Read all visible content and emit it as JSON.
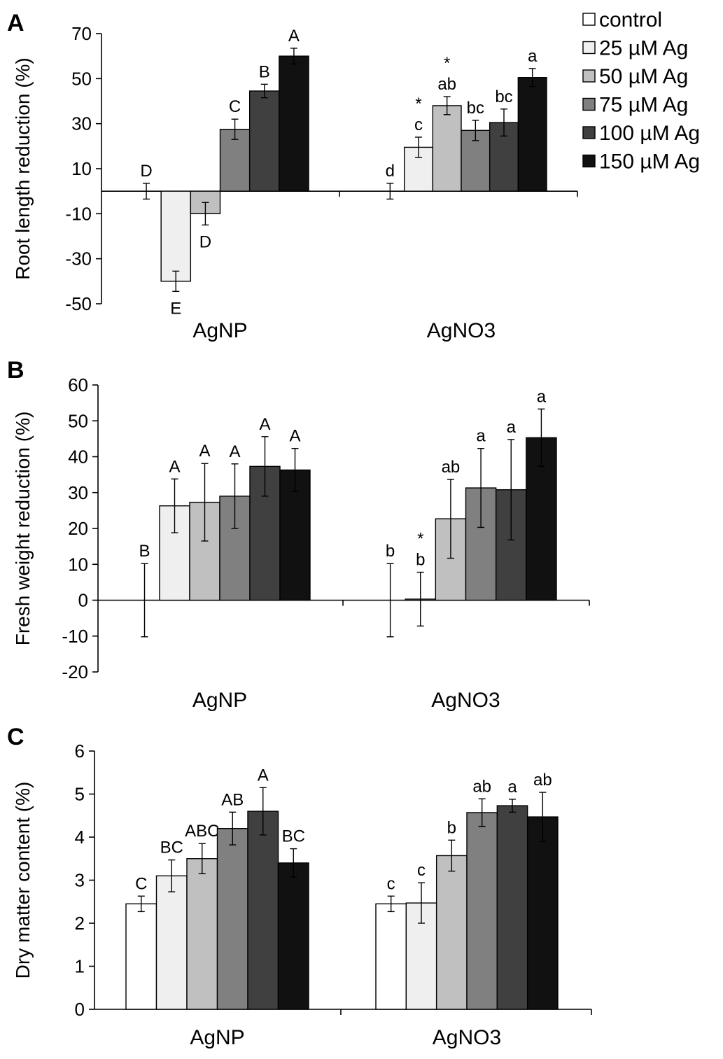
{
  "colors": {
    "control": "#ffffff",
    "25 µM Ag": "#efefef",
    "50 µM Ag": "#c0c0c0",
    "75 µM Ag": "#808080",
    "100 µM Ag": "#404040",
    "150 µM Ag": "#111111"
  },
  "legend": {
    "placement": "top-right",
    "items": [
      "control",
      "25 µM Ag",
      "50 µM Ag",
      "75 µM Ag",
      "100 µM Ag",
      "150 µM Ag"
    ]
  },
  "chart_data": [
    {
      "panel": "A",
      "type": "bar",
      "ylabel": "Root length reduction (%)",
      "categories": [
        "AgNP",
        "AgNO3"
      ],
      "ylim": [
        -50,
        70
      ],
      "yticks": [
        -50,
        -30,
        -10,
        10,
        30,
        50,
        70
      ],
      "grid": false,
      "series": [
        {
          "name": "control",
          "values": [
            0,
            0
          ],
          "errors": [
            3.5,
            3.5
          ],
          "letters": [
            "D",
            "d"
          ],
          "stars": [
            "",
            ""
          ]
        },
        {
          "name": "25 µM Ag",
          "values": [
            -40,
            19.5
          ],
          "errors": [
            4.5,
            4.5
          ],
          "letters": [
            "E",
            "c"
          ],
          "stars": [
            "",
            "*"
          ]
        },
        {
          "name": "50 µM Ag",
          "values": [
            -10,
            38
          ],
          "errors": [
            5,
            4
          ],
          "letters": [
            "D",
            "ab"
          ],
          "stars": [
            "",
            "*"
          ]
        },
        {
          "name": "75 µM Ag",
          "values": [
            27.5,
            27
          ],
          "errors": [
            4.5,
            4.5
          ],
          "letters": [
            "C",
            "bc"
          ],
          "stars": [
            "",
            ""
          ]
        },
        {
          "name": "100 µM Ag",
          "values": [
            44.5,
            30.5
          ],
          "errors": [
            3,
            6
          ],
          "letters": [
            "B",
            "bc"
          ],
          "stars": [
            "",
            ""
          ]
        },
        {
          "name": "150 µM Ag",
          "values": [
            60,
            50.5
          ],
          "errors": [
            3.5,
            4
          ],
          "letters": [
            "A",
            "a"
          ],
          "stars": [
            "",
            ""
          ]
        }
      ]
    },
    {
      "panel": "B",
      "type": "bar",
      "ylabel": "Fresh weight reduction (%)",
      "categories": [
        "AgNP",
        "AgNO3"
      ],
      "ylim": [
        -20,
        60
      ],
      "yticks": [
        -20,
        -10,
        0,
        10,
        20,
        30,
        40,
        50,
        60
      ],
      "grid": false,
      "series": [
        {
          "name": "control",
          "values": [
            0,
            0
          ],
          "errors": [
            10.2,
            10.2
          ],
          "letters": [
            "B",
            "b"
          ],
          "stars": [
            "",
            ""
          ]
        },
        {
          "name": "25 µM Ag",
          "values": [
            26.3,
            0.3
          ],
          "errors": [
            7.5,
            7.5
          ],
          "letters": [
            "A",
            "b"
          ],
          "stars": [
            "",
            "*"
          ]
        },
        {
          "name": "50 µM Ag",
          "values": [
            27.3,
            22.7
          ],
          "errors": [
            10.8,
            11
          ],
          "letters": [
            "A",
            "ab"
          ],
          "stars": [
            "",
            ""
          ]
        },
        {
          "name": "75 µM Ag",
          "values": [
            29,
            31.3
          ],
          "errors": [
            9,
            11
          ],
          "letters": [
            "A",
            "a"
          ],
          "stars": [
            "",
            ""
          ]
        },
        {
          "name": "100 µM Ag",
          "values": [
            37.3,
            30.8
          ],
          "errors": [
            8.3,
            14
          ],
          "letters": [
            "A",
            "a"
          ],
          "stars": [
            "",
            ""
          ]
        },
        {
          "name": "150 µM Ag",
          "values": [
            36.3,
            45.3
          ],
          "errors": [
            6,
            8
          ],
          "letters": [
            "A",
            "a"
          ],
          "stars": [
            "",
            ""
          ]
        }
      ]
    },
    {
      "panel": "C",
      "type": "bar",
      "ylabel": "Dry matter content (%)",
      "categories": [
        "AgNP",
        "AgNO3"
      ],
      "ylim": [
        0,
        6
      ],
      "yticks": [
        0,
        1,
        2,
        3,
        4,
        5,
        6
      ],
      "grid": false,
      "series": [
        {
          "name": "control",
          "values": [
            2.45,
            2.45
          ],
          "errors": [
            0.18,
            0.18
          ],
          "letters": [
            "C",
            "c"
          ],
          "stars": [
            "",
            ""
          ]
        },
        {
          "name": "25 µM Ag",
          "values": [
            3.1,
            2.47
          ],
          "errors": [
            0.37,
            0.47
          ],
          "letters": [
            "BC",
            "c"
          ],
          "stars": [
            "",
            ""
          ]
        },
        {
          "name": "50 µM Ag",
          "values": [
            3.5,
            3.57
          ],
          "errors": [
            0.35,
            0.36
          ],
          "letters": [
            "ABC",
            "b"
          ],
          "stars": [
            "",
            ""
          ]
        },
        {
          "name": "75 µM Ag",
          "values": [
            4.2,
            4.57
          ],
          "errors": [
            0.38,
            0.32
          ],
          "letters": [
            "AB",
            "ab"
          ],
          "stars": [
            "",
            ""
          ]
        },
        {
          "name": "100 µM Ag",
          "values": [
            4.6,
            4.73
          ],
          "errors": [
            0.55,
            0.15
          ],
          "letters": [
            "A",
            "a"
          ],
          "stars": [
            "",
            ""
          ]
        },
        {
          "name": "150 µM Ag",
          "values": [
            3.4,
            4.47
          ],
          "errors": [
            0.33,
            0.57
          ],
          "letters": [
            "BC",
            "ab"
          ],
          "stars": [
            "",
            ""
          ]
        }
      ]
    }
  ]
}
